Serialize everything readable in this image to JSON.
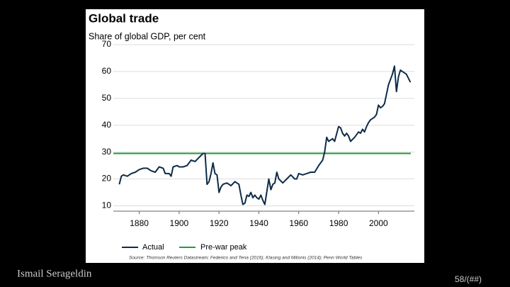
{
  "chart_data": {
    "type": "line",
    "title": "Global trade",
    "subtitle": "Share of global GDP, per cent",
    "x": [
      1870,
      1871,
      1872,
      1874,
      1876,
      1878,
      1880,
      1882,
      1884,
      1886,
      1888,
      1890,
      1892,
      1893,
      1895,
      1896,
      1897,
      1899,
      1900,
      1902,
      1904,
      1906,
      1908,
      1910,
      1912,
      1913,
      1914,
      1915,
      1916,
      1917,
      1918,
      1919,
      1920,
      1921,
      1922,
      1924,
      1926,
      1928,
      1930,
      1931,
      1932,
      1933,
      1934,
      1935,
      1936,
      1937,
      1938,
      1939,
      1940,
      1941,
      1942,
      1943,
      1945,
      1946,
      1947,
      1948,
      1949,
      1950,
      1952,
      1954,
      1956,
      1958,
      1959,
      1960,
      1962,
      1964,
      1966,
      1968,
      1970,
      1972,
      1973,
      1974,
      1975,
      1976,
      1977,
      1978,
      1980,
      1981,
      1982,
      1983,
      1984,
      1985,
      1986,
      1988,
      1990,
      1991,
      1992,
      1993,
      1994,
      1995,
      1996,
      1998,
      1999,
      2000,
      2001,
      2002,
      2003,
      2004,
      2005,
      2006,
      2007,
      2008,
      2009,
      2010,
      2011,
      2012,
      2013,
      2014,
      2015,
      2016
    ],
    "series": [
      {
        "name": "Actual",
        "color": "#0d2c4a",
        "values": [
          18,
          21,
          21.5,
          21,
          22,
          22.5,
          23.5,
          24,
          24,
          23,
          22.5,
          24.5,
          24,
          22,
          22,
          21,
          24.5,
          25,
          24.5,
          24.5,
          25,
          27,
          26.5,
          28,
          29.5,
          29.5,
          18,
          19,
          22,
          26,
          22,
          21.5,
          15,
          17,
          18,
          18.5,
          17.5,
          19,
          18,
          14,
          10.5,
          11,
          14,
          13.5,
          15,
          13,
          14,
          13,
          12.5,
          14,
          12,
          10.5,
          20,
          16,
          18,
          18.5,
          22.5,
          20,
          18.5,
          20,
          21.5,
          20,
          20,
          22,
          21.5,
          22,
          22.5,
          22.5,
          25,
          27,
          30,
          35.5,
          34,
          34.5,
          35,
          34,
          39.5,
          39,
          37,
          36,
          37,
          36,
          34,
          35.5,
          37.5,
          37,
          38.5,
          37.5,
          39.5,
          41,
          42,
          43,
          44,
          47.5,
          46.5,
          47,
          48,
          51.5,
          55,
          57,
          59,
          62,
          52.5,
          58,
          60.5,
          60,
          59.5,
          59,
          57.5,
          56
        ]
      }
    ],
    "reference_line": {
      "name": "Pre-war peak",
      "value": 29.5,
      "color": "#1f9e3f"
    },
    "xlim": [
      1867,
      2018
    ],
    "xticks": [
      1880,
      1900,
      1920,
      1940,
      1960,
      1980,
      2000
    ],
    "ylim": [
      8,
      70
    ],
    "yticks": [
      10,
      20,
      30,
      40,
      50,
      60,
      70
    ],
    "grid": true,
    "source": "Source: Thomson Reuters Datastream; Federico and Tena (2016); Klasing and Milionis (2014); Penn World Tables"
  },
  "footer": {
    "author": "Ismail Serageldin",
    "page": "58/(##)"
  }
}
